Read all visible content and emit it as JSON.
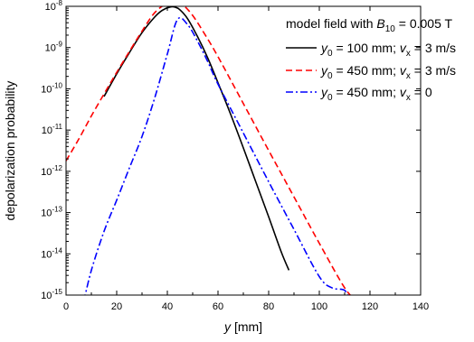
{
  "chart_data": {
    "type": "line",
    "xlabel": "y [mm]",
    "ylabel": "depolarization probability",
    "xlim": [
      0,
      140
    ],
    "ylim_exponent": [
      -15,
      -8
    ],
    "y_scale": "log",
    "x_ticks": [
      0,
      20,
      40,
      60,
      80,
      100,
      120,
      140
    ],
    "y_ticks": [
      "10^-15",
      "10^-14",
      "10^-13",
      "10^-12",
      "10^-11",
      "10^-10",
      "10^-9",
      "10^-8"
    ],
    "legend": {
      "title": "model field with B10 = 0.005 T",
      "position": "top-right"
    },
    "series": [
      {
        "name": "y0 = 100 mm; vx = 3 m/s",
        "color": "#000000",
        "dash": "solid",
        "x": [
          15,
          20,
          25,
          30,
          35,
          38,
          41,
          43,
          45,
          48,
          52,
          56,
          60,
          65,
          70,
          75,
          80,
          85,
          88
        ],
        "y": [
          6.5e-11,
          2.3e-10,
          7.5e-10,
          2.3e-09,
          5.5e-09,
          8e-09,
          9.6e-09,
          9.6e-09,
          8.2e-09,
          5e-09,
          1.8e-09,
          5.5e-10,
          1.4e-10,
          2.4e-11,
          3.7e-12,
          5.4e-13,
          7.9e-14,
          1.1e-14,
          4e-15
        ]
      },
      {
        "name": "y0 = 450 mm; vx = 3 m/s",
        "color": "#ff0000",
        "dash": "dashed",
        "x": [
          0,
          5,
          10,
          15,
          20,
          25,
          30,
          35,
          40,
          43,
          46,
          50,
          55,
          60,
          70,
          80,
          90,
          100,
          110,
          115
        ],
        "y": [
          1.8e-12,
          6e-12,
          2.2e-11,
          7.5e-11,
          2.5e-10,
          8e-10,
          2.5e-09,
          7e-09,
          1.2e-08,
          1.3e-08,
          1.1e-08,
          6e-09,
          2e-09,
          6e-10,
          4.4e-11,
          3.2e-12,
          2.4e-13,
          1.8e-14,
          1.5e-15,
          7e-16
        ]
      },
      {
        "name": "y0 = 450 mm; vx = 0",
        "color": "#0000ff",
        "dash": "dashdot",
        "x": [
          7,
          10,
          15,
          20,
          25,
          30,
          35,
          40,
          44,
          48,
          52,
          56,
          60,
          70,
          80,
          90,
          100,
          105,
          110,
          112
        ],
        "y": [
          7e-16,
          4e-15,
          3.5e-14,
          2e-13,
          1.2e-12,
          7e-12,
          6e-11,
          7e-10,
          4.8e-09,
          3.6e-09,
          1.4e-09,
          4.5e-10,
          1.3e-10,
          8.5e-12,
          5.6e-13,
          3.9e-14,
          2.8e-15,
          1.5e-15,
          1.3e-15,
          7e-16
        ]
      }
    ]
  }
}
